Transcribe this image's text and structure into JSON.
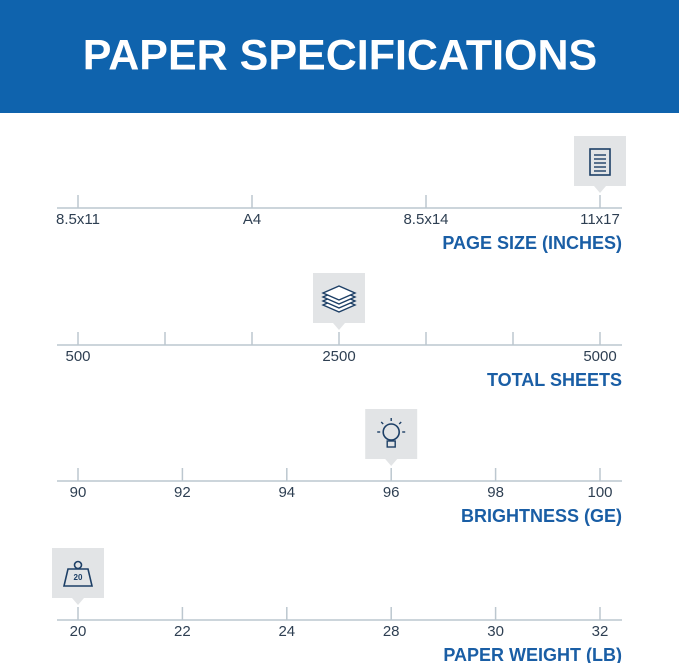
{
  "title": "PAPER SPECIFICATIONS",
  "scales": [
    {
      "label": "PAGE SIZE (INCHES)",
      "categories": [
        "8.5x11",
        "A4",
        "8.5x14",
        "11x17"
      ],
      "value": "11x17"
    },
    {
      "label": "TOTAL SHEETS",
      "categories": [
        500,
        null,
        null,
        2500,
        null,
        null,
        5000
      ],
      "value": 2500
    },
    {
      "label": "BRIGHTNESS (GE)",
      "categories": [
        90,
        92,
        94,
        96,
        98,
        100
      ],
      "value": 96
    },
    {
      "label": "PAPER WEIGHT (LB)",
      "categories": [
        20,
        22,
        24,
        28,
        30,
        32
      ],
      "value": 20
    }
  ]
}
